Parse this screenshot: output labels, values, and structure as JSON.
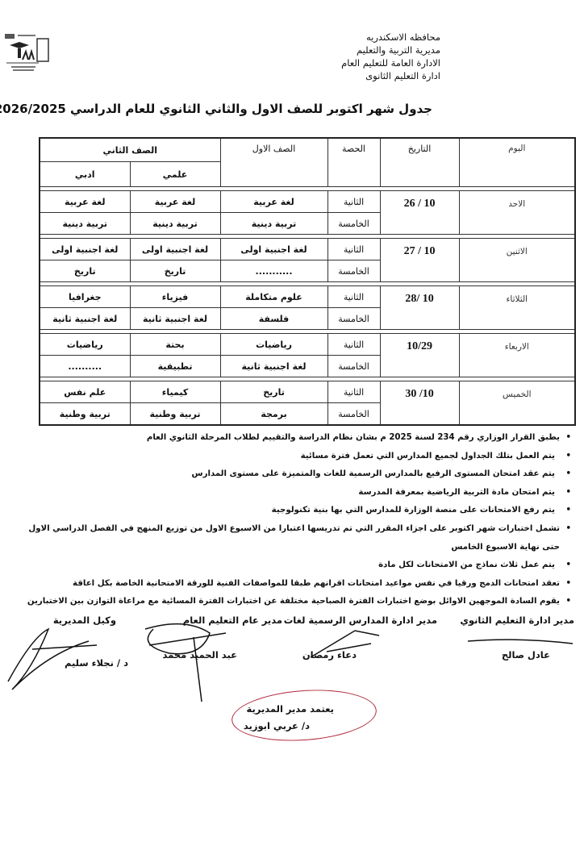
{
  "header": {
    "org_lines": [
      "محافظه الاسكندريه",
      "مديرية التربية والتعليم",
      "الادارة العامة للتعليم العام",
      "ادارة التعليم الثانوى"
    ],
    "title": "جدول شهر اكتوبر للصف الاول والثاني الثانوي للعام الدراسي 2026/2025"
  },
  "table": {
    "headers": {
      "day": "اليوم",
      "date": "التاريخ",
      "period": "الحصة",
      "first_grade": "الصف الاول",
      "second_grade": "الصف الثاني",
      "scientific": "علمي",
      "literary": "ادبي"
    },
    "rows": [
      {
        "day": "الاحد",
        "date": "10 / 26",
        "slots": [
          {
            "period": "الثانية",
            "first": "لغة عربية",
            "sci": "لغة عربية",
            "lit": "لغة عربية"
          },
          {
            "period": "الخامسة",
            "first": "تربية دينية",
            "sci": "تربية دينية",
            "lit": "تربية دينية"
          }
        ]
      },
      {
        "day": "الاثنين",
        "date": "10 / 27",
        "slots": [
          {
            "period": "الثانية",
            "first": "لغة اجنبية اولى",
            "sci": "لغة اجنبية اولى",
            "lit": "لغة اجنبية اولى"
          },
          {
            "period": "الخامسة",
            "first": "...........",
            "sci": "تاريخ",
            "lit": "تاريخ"
          }
        ]
      },
      {
        "day": "الثلاثاء",
        "date": "10 /28",
        "slots": [
          {
            "period": "الثانية",
            "first": "علوم متكاملة",
            "sci": "فيزياء",
            "lit": "جغرافيا"
          },
          {
            "period": "الخامسة",
            "first": "فلسفة",
            "sci": "لغة اجنبية ثانية",
            "lit": "لغة اجنبية ثانية"
          }
        ]
      },
      {
        "day": "الاربعاء",
        "date": "10/29",
        "slots": [
          {
            "period": "الثانية",
            "first": "رياضيات",
            "sci": "بحتة",
            "lit": "رياضيات"
          },
          {
            "period": "الخامسة",
            "first": "لغة اجنبية ثانية",
            "sci": "تطبيقية",
            "lit": ".........."
          }
        ]
      },
      {
        "day": "الخميس",
        "date": "10/ 30",
        "slots": [
          {
            "period": "الثانية",
            "first": "تاريخ",
            "sci": "كيمياء",
            "lit": "علم نفس"
          },
          {
            "period": "الخامسة",
            "first": "برمجة",
            "sci": "تربية وطنية",
            "lit": "تربية وطنية"
          }
        ]
      }
    ]
  },
  "notes": [
    "يطبق القرار الوزاري رقم 234 لسنة 2025 م بشان نظام الدراسة والتقييم لطلاب المرحلة الثانوي العام",
    "يتم العمل بتلك الجداول لجميع المدارس التي تعمل فترة مسائية",
    "يتم عقد امتحان المستوى الرفيع بالمدارس الرسمية للغات والمتميزة على مستوى المدارس",
    "يتم امتحان مادة التربية الرياضية بمعرفة المدرسة",
    "يتم رفع الامتحانات على منصة الوزارة للمدارس التي بها بنية تكنولوجية",
    "تشمل اختبارات شهر اكتوبر على اجزاء المقرر التي تم تدريسها اعتبارا من الاسبوع الاول من توزيع المنهج في الفصل الدراسي الاول",
    "حتى نهاية الاسبوع الخامس",
    "يتم عمل ثلاث نماذج من الامتحانات لكل مادة",
    "تعقد امتحانات الدمج ورقيا في نفس مواعيد امتحانات اقرانهم طبقا للمواصفات الفنية للورقة الامتحانية الخاصة بكل اعاقة",
    "يقوم السادة الموجهين الاوائل بوضع اختبارات الفترة الصباحية مختلفة عن اختبارات الفترة المسائية مع مراعاة التوازن بين الاختبارين"
  ],
  "signatures": [
    {
      "title": "مدير ادارة التعليم الثانوي",
      "name": "عادل صالح"
    },
    {
      "title": "مدير ادارة المدارس الرسمية لغات",
      "name": "دعاء رمضان"
    },
    {
      "title": "مدير عام التعليم العام",
      "name": "عبد الحميد محمد"
    },
    {
      "title": "وكيل المديرية",
      "name": "د / نجلاء سليم"
    }
  ],
  "approval": {
    "label": "يعتمد مدير المديرية",
    "name": "د/ عربي ابوزيد"
  },
  "colors": {
    "stamp": "#b0283a"
  }
}
